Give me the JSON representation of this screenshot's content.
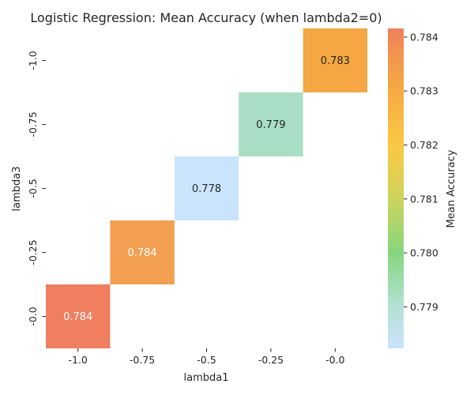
{
  "chart_data": {
    "type": "heatmap",
    "title": "Logistic Regression: Mean Accuracy (when lambda2=0)",
    "xlabel": "lambda1",
    "ylabel": "lambda3",
    "x_categories": [
      "-1.0",
      "-0.75",
      "-0.5",
      "-0.25",
      "-0.0"
    ],
    "y_categories": [
      "-1.0",
      "-0.75",
      "-0.5",
      "-0.25",
      "-0.0"
    ],
    "cells": [
      {
        "x": "-0.0",
        "y": "-1.0",
        "value": 0.7833,
        "label": "0.783",
        "color": "#F4A742",
        "text_color": "#262626"
      },
      {
        "x": "-0.25",
        "y": "-0.75",
        "value": 0.7788,
        "label": "0.779",
        "color": "#A8DEC5",
        "text_color": "#262626"
      },
      {
        "x": "-0.5",
        "y": "-0.5",
        "value": 0.7783,
        "label": "0.778",
        "color": "#CAE4FC",
        "text_color": "#262626"
      },
      {
        "x": "-0.75",
        "y": "-0.25",
        "value": 0.7838,
        "label": "0.784",
        "color": "#F29F51",
        "text_color": "#ffffff"
      },
      {
        "x": "-1.0",
        "y": "-0.0",
        "value": 0.7842,
        "label": "0.784",
        "color": "#EF7F5E",
        "text_color": "#ffffff"
      }
    ],
    "colorbar": {
      "label": "Mean Accuracy",
      "vmin": 0.77823,
      "vmax": 0.78416,
      "ticks": [
        0.779,
        0.78,
        0.781,
        0.782,
        0.783,
        0.784
      ],
      "tick_labels": [
        "0.779",
        "0.780",
        "0.781",
        "0.782",
        "0.783",
        "0.784"
      ],
      "stops": [
        {
          "value": 0.77823,
          "color": "#CAE4FC"
        },
        {
          "value": 0.779,
          "color": "#B3E1D5"
        },
        {
          "value": 0.78,
          "color": "#86D67E"
        },
        {
          "value": 0.781,
          "color": "#CDD45C"
        },
        {
          "value": 0.782,
          "color": "#FBC843"
        },
        {
          "value": 0.783,
          "color": "#F5AB43"
        },
        {
          "value": 0.7838,
          "color": "#F19050"
        },
        {
          "value": 0.78416,
          "color": "#EF7F5E"
        }
      ]
    },
    "grid": false,
    "legend": "colorbar-right"
  }
}
